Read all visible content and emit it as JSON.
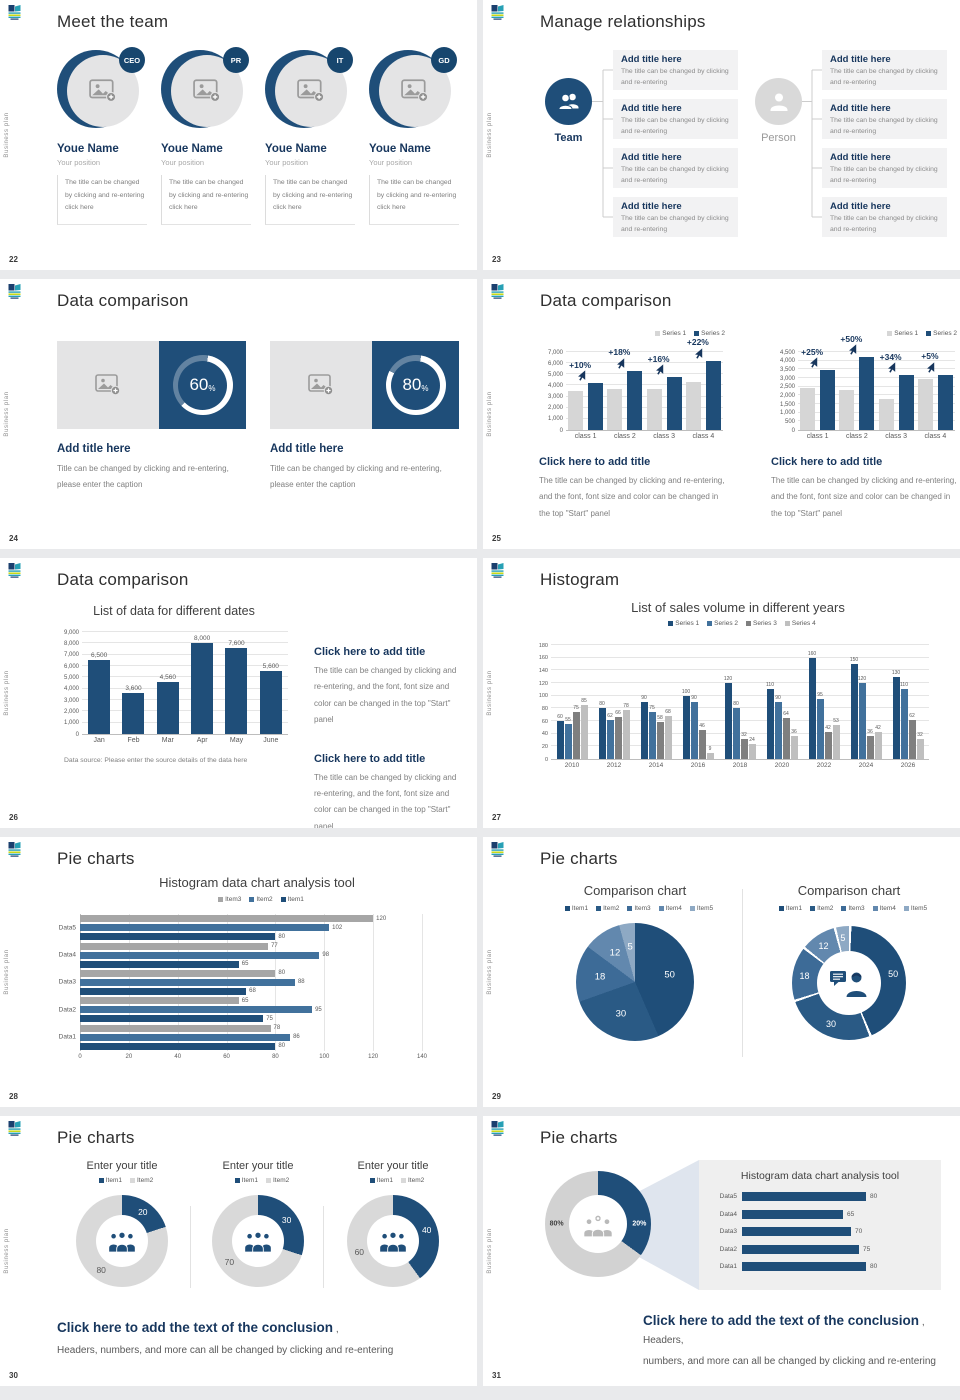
{
  "page": {
    "background": "#e9eaec",
    "slide_background": "#ffffff",
    "side_text": "Business plan"
  },
  "colors": {
    "navy": "#1f4e79",
    "navy_text": "#17365d",
    "medium_blue": "#41719c",
    "bar_gray": "#d6d6d6",
    "series3_gray": "#7f7f7f",
    "series4_gray": "#bfbfbf",
    "item3_gray": "#a6a6a6",
    "donut_gray": "#d9d9d9",
    "body_gray": "#808080",
    "pie_shades": [
      "#1f4e79",
      "#2a5a85",
      "#3d6b97",
      "#6288ae",
      "#8ea9c4"
    ]
  },
  "slides": [
    {
      "number": "22",
      "title": "Meet the team",
      "members": [
        {
          "badge": "CEO",
          "name": "Youe Name",
          "position": "Your position",
          "text": "The title can be changed by clicking and re-entering click here"
        },
        {
          "badge": "PR",
          "name": "Youe Name",
          "position": "Your position",
          "text": "The title can be changed by clicking and re-entering click here"
        },
        {
          "badge": "IT",
          "name": "Youe Name",
          "position": "Your position",
          "text": "The title can be changed by clicking and re-entering click here"
        },
        {
          "badge": "GD",
          "name": "Youe Name",
          "position": "Your position",
          "text": "The title can be changed by clicking and re-entering click here"
        }
      ]
    },
    {
      "number": "23",
      "title": "Manage relationships",
      "team_label": "Team",
      "person_label": "Person",
      "box_title": "Add title here",
      "box_text": "The title can be changed by clicking and re-entering"
    },
    {
      "number": "24",
      "title": "Data comparison",
      "panels": [
        {
          "percent": "60",
          "unit": "%",
          "title": "Add title here",
          "caption": "Title can be changed by clicking and re-entering, please enter the caption"
        },
        {
          "percent": "80",
          "unit": "%",
          "title": "Add title here",
          "caption": "Title can be changed by clicking and re-entering, please enter the caption"
        }
      ]
    },
    {
      "number": "25",
      "title": "Data comparison",
      "column_title": "Click here to add title",
      "column_text": "The title can be changed by clicking and re-entering, and the font, font size and color can be changed in the top \"Start\" panel"
    },
    {
      "number": "26",
      "title": "Data comparison",
      "block_title": "Click here to add title",
      "block_text": "The title can be changed by clicking and re-entering, and the font, font size and color can be changed in the top \"Start\" panel"
    },
    {
      "number": "27",
      "title": "Histogram"
    },
    {
      "number": "28",
      "title": "Pie charts"
    },
    {
      "number": "29",
      "title": "Pie charts"
    },
    {
      "number": "30",
      "title": "Pie charts",
      "conclusion_title": "Click here to add the text of the conclusion",
      "conclusion_suffix": " ,",
      "conclusion_line2": "Headers, numbers, and more can all be changed by clicking and re-entering"
    },
    {
      "number": "31",
      "title": "Pie charts",
      "conclusion_title": "Click here to add the text of the conclusion",
      "conclusion_suffix": " , Headers,",
      "conclusion_line2": "numbers, and more can all be changed by clicking and re-entering"
    }
  ],
  "chart_data": [
    {
      "id": "slide25-left",
      "type": "bar",
      "title": "",
      "categories": [
        "class 1",
        "class 2",
        "class 3",
        "class 4"
      ],
      "series": [
        {
          "name": "Series 1",
          "values": [
            3500,
            3700,
            3650,
            4300
          ]
        },
        {
          "name": "Series 2",
          "values": [
            4200,
            5300,
            4750,
            6200
          ]
        }
      ],
      "annotations": [
        "+10%",
        "+18%",
        "+16%",
        "+22%"
      ],
      "ylim": [
        0,
        7000
      ],
      "ystep": 1000,
      "grid": true,
      "legend_position": "top-right"
    },
    {
      "id": "slide25-right",
      "type": "bar",
      "title": "",
      "categories": [
        "class 1",
        "class 2",
        "class 3",
        "class 4"
      ],
      "series": [
        {
          "name": "Series 1",
          "values": [
            2450,
            2300,
            1800,
            2950
          ]
        },
        {
          "name": "Series 2",
          "values": [
            3450,
            4200,
            3150,
            3200
          ]
        }
      ],
      "annotations": [
        "+25%",
        "+50%",
        "+34%",
        "+5%"
      ],
      "ylim": [
        0,
        4500
      ],
      "ystep": 500,
      "grid": true,
      "legend_position": "top-right"
    },
    {
      "id": "slide26",
      "type": "bar",
      "title": "List of data for different dates",
      "categories": [
        "Jan",
        "Feb",
        "Mar",
        "Apr",
        "May",
        "June"
      ],
      "values": [
        6500,
        3600,
        4560,
        8000,
        7600,
        5600
      ],
      "value_labels": [
        "6,500",
        "3,600",
        "4,560",
        "8,000",
        "7,600",
        "5,600"
      ],
      "ylim": [
        0,
        9000
      ],
      "ystep": 1000,
      "grid": true,
      "source_note": "Data source: Please enter the source details of the data here"
    },
    {
      "id": "slide27",
      "type": "bar",
      "title": "List of sales volume in different years",
      "categories": [
        "2010",
        "2012",
        "2014",
        "2016",
        "2018",
        "2020",
        "2022",
        "2024",
        "2026"
      ],
      "series": [
        {
          "name": "Series 1",
          "values": [
            60,
            80,
            90,
            100,
            120,
            110,
            160,
            150,
            130
          ]
        },
        {
          "name": "Series 2",
          "values": [
            55,
            62,
            75,
            90,
            80,
            90,
            95,
            120,
            110
          ]
        },
        {
          "name": "Series 3",
          "values": [
            75,
            66,
            58,
            46,
            32,
            64,
            42,
            36,
            62
          ]
        },
        {
          "name": "Series 4",
          "values": [
            85,
            78,
            68,
            9,
            24,
            36,
            53,
            42,
            32
          ]
        }
      ],
      "ylim": [
        0,
        180
      ],
      "ystep": 20,
      "grid": true,
      "legend_position": "top-center"
    },
    {
      "id": "slide28",
      "type": "bar-horizontal",
      "title": "Histogram data chart analysis tool",
      "categories": [
        "Data5",
        "Data4",
        "Data3",
        "Data2",
        "Data1"
      ],
      "series": [
        {
          "name": "Item3",
          "values": [
            120,
            77,
            80,
            65,
            78
          ]
        },
        {
          "name": "Item2",
          "values": [
            102,
            98,
            88,
            95,
            86
          ]
        },
        {
          "name": "Item1",
          "values": [
            80,
            65,
            68,
            75,
            80
          ]
        }
      ],
      "xlim": [
        0,
        140
      ],
      "xstep": 20,
      "grid": true,
      "legend_position": "top-center"
    },
    {
      "id": "slide29-pie",
      "type": "pie",
      "title": "Comparison chart",
      "labels": [
        "Item1",
        "Item2",
        "Item3",
        "Item4",
        "Item5"
      ],
      "values": [
        50,
        30,
        18,
        12,
        5
      ],
      "legend_position": "top-center"
    },
    {
      "id": "slide29-donut",
      "type": "pie",
      "donut": true,
      "title": "Comparison chart",
      "labels": [
        "Item1",
        "Item2",
        "Item3",
        "Item4",
        "Item5"
      ],
      "values": [
        50,
        30,
        18,
        12,
        5
      ],
      "legend_position": "top-center"
    },
    {
      "id": "slide30-donut1",
      "type": "pie",
      "donut": true,
      "title": "Enter your title",
      "labels": [
        "Item1",
        "Item2"
      ],
      "values": [
        20,
        80
      ]
    },
    {
      "id": "slide30-donut2",
      "type": "pie",
      "donut": true,
      "title": "Enter your title",
      "labels": [
        "Item1",
        "Item2"
      ],
      "values": [
        30,
        70
      ]
    },
    {
      "id": "slide30-donut3",
      "type": "pie",
      "donut": true,
      "title": "Enter your title",
      "labels": [
        "Item1",
        "Item2"
      ],
      "values": [
        40,
        60
      ]
    },
    {
      "id": "slide31-donut",
      "type": "pie",
      "donut": true,
      "labels": [
        "Item1",
        "Item2"
      ],
      "values": [
        20,
        80
      ],
      "value_labels": [
        "20%",
        "80%"
      ]
    },
    {
      "id": "slide31-bars",
      "type": "bar-horizontal",
      "title": "Histogram data chart analysis tool",
      "categories": [
        "Data5",
        "Data4",
        "Data3",
        "Data2",
        "Data1"
      ],
      "values": [
        80,
        65,
        70,
        75,
        80
      ],
      "xlim": [
        0,
        90
      ]
    }
  ]
}
